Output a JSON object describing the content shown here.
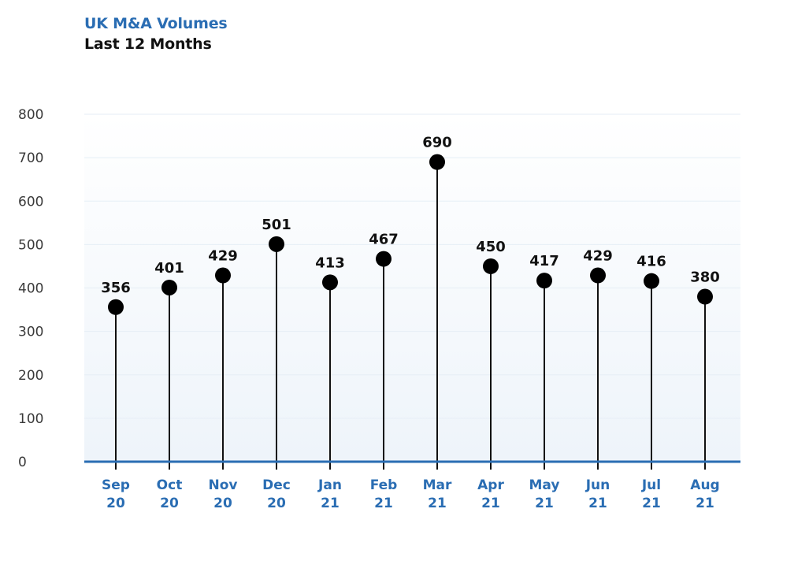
{
  "header": {
    "title": "UK M&A Volumes",
    "subtitle": "Last 12 Months"
  },
  "colors": {
    "title": "#2a6db3",
    "axis": "#2a6db3",
    "stem": "#111111",
    "marker": "#000000",
    "grid": "#e6eef6"
  },
  "chart_data": {
    "type": "lollipop",
    "title": "UK M&A Volumes",
    "subtitle": "Last 12 Months",
    "categories": [
      [
        "Sep",
        "20"
      ],
      [
        "Oct",
        "20"
      ],
      [
        "Nov",
        "20"
      ],
      [
        "Dec",
        "20"
      ],
      [
        "Jan",
        "21"
      ],
      [
        "Feb",
        "21"
      ],
      [
        "Mar",
        "21"
      ],
      [
        "Apr",
        "21"
      ],
      [
        "May",
        "21"
      ],
      [
        "Jun",
        "21"
      ],
      [
        "Jul",
        "21"
      ],
      [
        "Aug",
        "21"
      ]
    ],
    "values": [
      356,
      401,
      429,
      501,
      413,
      467,
      690,
      450,
      417,
      429,
      416,
      380
    ],
    "ylim": [
      0,
      800
    ],
    "yticks": [
      0,
      100,
      200,
      300,
      400,
      500,
      600,
      700,
      800
    ],
    "grid": true,
    "legend": "none"
  }
}
